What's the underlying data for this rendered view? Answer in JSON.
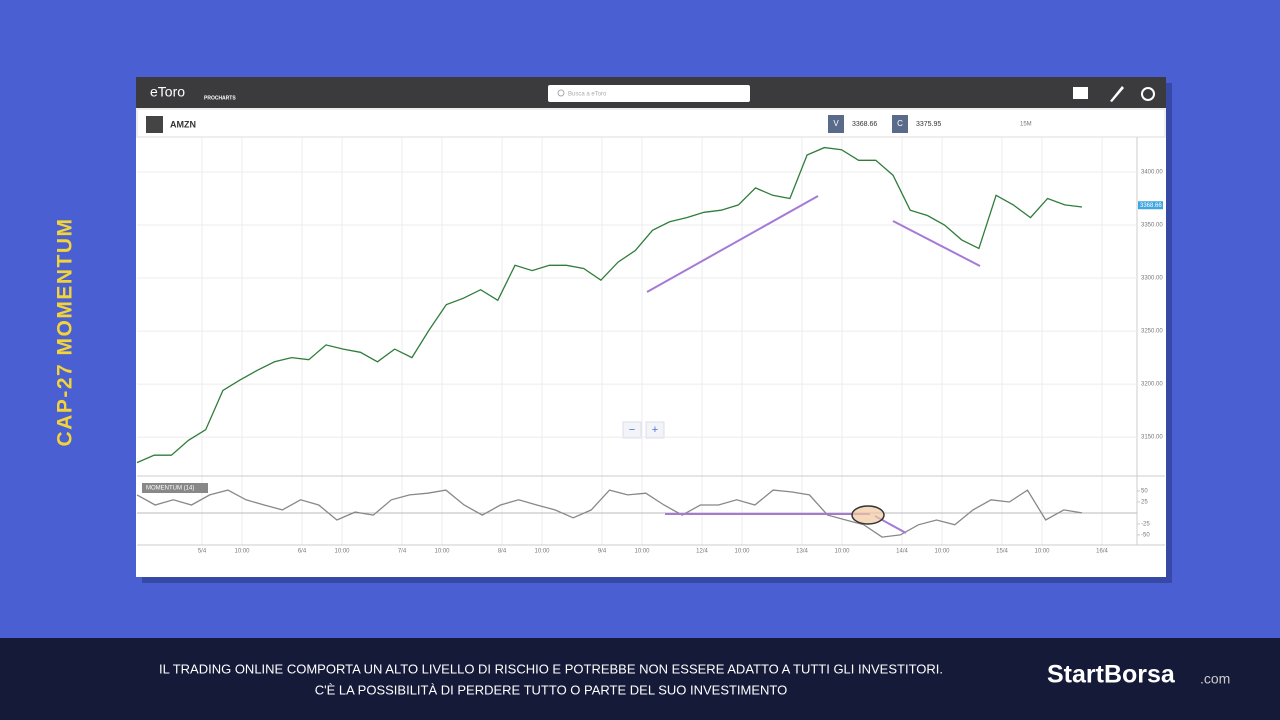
{
  "side_title": "CAP-27 MOMENTUM",
  "app": {
    "logo": "eToro",
    "logo_sub": "PROCHARTS",
    "search_placeholder": "Busca a eToro",
    "symbol": "AMZN",
    "bid_label": "V",
    "bid": "3368.66",
    "ask_label": "C",
    "ask": "3375.95",
    "timeframe": "15M",
    "zoom_out": "−",
    "zoom_in": "+"
  },
  "price": {
    "ylim": [
      3119,
      3433
    ],
    "ticks": [
      {
        "value": 3400,
        "label": "3400.00"
      },
      {
        "value": 3350,
        "label": "3350.00"
      },
      {
        "value": 3300,
        "label": "3300.00"
      },
      {
        "value": 3250,
        "label": "3250.00"
      },
      {
        "value": 3200,
        "label": "3200.00"
      },
      {
        "value": 3150,
        "label": "3150.00"
      }
    ],
    "current": {
      "value": 3368.66,
      "label": "3368.66"
    },
    "values": [
      3126,
      3133,
      3133,
      3147,
      3157,
      3194,
      3204,
      3213,
      3221,
      3225,
      3223,
      3237,
      3233,
      3230,
      3221,
      3233,
      3225,
      3251,
      3275,
      3281,
      3289,
      3279,
      3312,
      3307,
      3312,
      3312,
      3309,
      3298,
      3315,
      3326,
      3345,
      3353,
      3357,
      3362,
      3364,
      3369,
      3385,
      3378,
      3375,
      3416,
      3423,
      3421,
      3411,
      3411,
      3397,
      3364,
      3359,
      3350,
      3336,
      3328,
      3378,
      3369,
      3357,
      3375,
      3369,
      3367
    ]
  },
  "momentum": {
    "label": "MOMENTUM (14)",
    "ylim": [
      -73,
      75
    ],
    "ticks": [
      50,
      25,
      -25,
      -50
    ],
    "values": [
      41,
      18,
      30,
      18,
      41,
      52,
      30,
      18,
      7,
      30,
      18,
      -16,
      2,
      -5,
      30,
      41,
      45,
      52,
      18,
      -5,
      18,
      30,
      18,
      7,
      -11,
      7,
      52,
      41,
      45,
      18,
      -5,
      18,
      18,
      30,
      18,
      52,
      48,
      41,
      -5,
      -16,
      -27,
      -55,
      -50,
      -27,
      -16,
      -27,
      7,
      30,
      25,
      52,
      -16,
      7,
      0
    ]
  },
  "x_labels": [
    "5/4",
    "10:00",
    "6/4",
    "10:00",
    "7/4",
    "10:00",
    "8/4",
    "10:00",
    "9/4",
    "10:00",
    "12/4",
    "10:00",
    "13/4",
    "10:00",
    "14/4",
    "10:00",
    "15/4",
    "10:00",
    "16/4"
  ],
  "footer": {
    "line1": "IL TRADING ONLINE COMPORTA UN ALTO LIVELLO DI RISCHIO E POTREBBE NON ESSERE ADATTO A TUTTI GLI INVESTITORI.",
    "line2": "C'È LA POSSIBILITÀ DI PERDERE TUTTO O PARTE DEL SUO INVESTIMENTO",
    "brand": "StartBorsa",
    "brand_suffix": ".com"
  }
}
